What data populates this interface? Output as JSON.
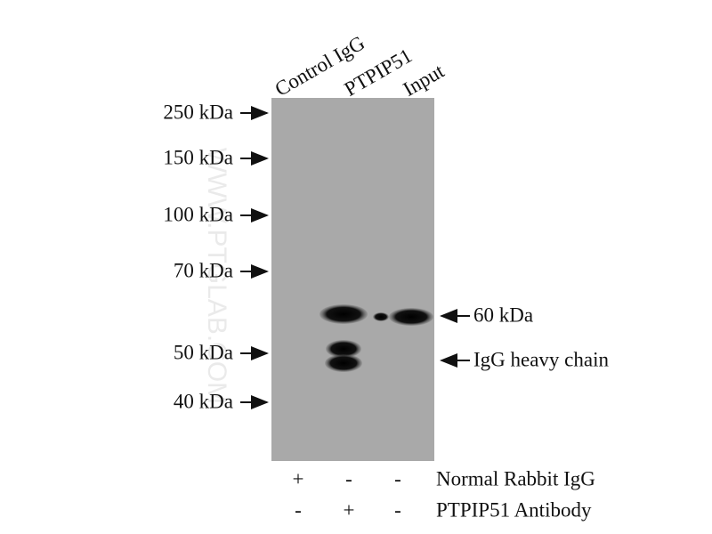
{
  "watermark": "WWW.PTGLAB.COM",
  "lanes": [
    "Control IgG",
    "PTPIP51",
    "Input"
  ],
  "markers": [
    "250 kDa",
    "150 kDa",
    "100 kDa",
    "70 kDa",
    "50 kDa",
    "40 kDa"
  ],
  "annotations": [
    "60 kDa",
    "IgG heavy chain"
  ],
  "treatments": [
    {
      "label": "Normal Rabbit IgG",
      "signs": [
        "+",
        "-",
        "-"
      ]
    },
    {
      "label": "PTPIP51 Antibody",
      "signs": [
        "-",
        "+",
        "-"
      ]
    }
  ]
}
